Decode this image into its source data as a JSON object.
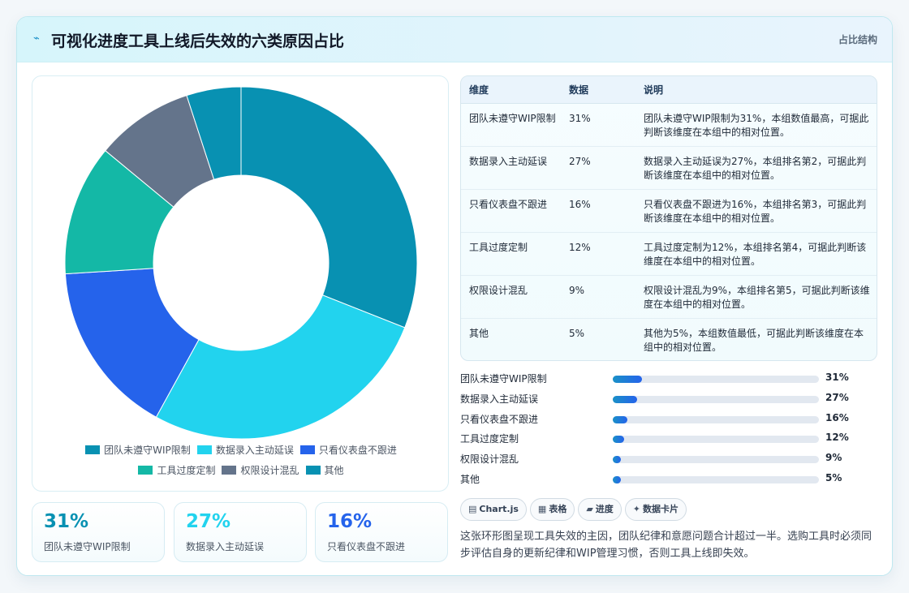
{
  "header": {
    "title": "可视化进度工具上线后失效的六类原因占比",
    "tag": "占比结构"
  },
  "colors": {
    "accent": "#0891b2",
    "slices": [
      "#0891b2",
      "#22d3ee",
      "#2563eb",
      "#14b8a6",
      "#64748b",
      "#0891b2"
    ],
    "kpi": [
      "#0891b2",
      "#22d3ee",
      "#2563eb"
    ]
  },
  "chart_data": {
    "type": "pie",
    "variant": "doughnut",
    "categories": [
      "团队未遵守WIP限制",
      "数据录入主动延误",
      "只看仪表盘不跟进",
      "工具过度定制",
      "权限设计混乱",
      "其他"
    ],
    "values": [
      31,
      27,
      16,
      12,
      9,
      5
    ],
    "legend_position": "bottom"
  },
  "table": {
    "headers": [
      "维度",
      "数据",
      "说明"
    ],
    "rows": [
      {
        "dim": "团队未遵守WIP限制",
        "val": "31%",
        "note": "团队未遵守WIP限制为31%，本组数值最高，可据此判断该维度在本组中的相对位置。"
      },
      {
        "dim": "数据录入主动延误",
        "val": "27%",
        "note": "数据录入主动延误为27%，本组排名第2，可据此判断该维度在本组中的相对位置。"
      },
      {
        "dim": "只看仪表盘不跟进",
        "val": "16%",
        "note": "只看仪表盘不跟进为16%，本组排名第3，可据此判断该维度在本组中的相对位置。"
      },
      {
        "dim": "工具过度定制",
        "val": "12%",
        "note": "工具过度定制为12%，本组排名第4，可据此判断该维度在本组中的相对位置。"
      },
      {
        "dim": "权限设计混乱",
        "val": "9%",
        "note": "权限设计混乱为9%，本组排名第5，可据此判断该维度在本组中的相对位置。"
      },
      {
        "dim": "其他",
        "val": "5%",
        "note": "其他为5%，本组数值最低，可据此判断该维度在本组中的相对位置。"
      }
    ]
  },
  "progress": [
    {
      "label": "团队未遵守WIP限制",
      "value_text": "31%",
      "fill": 0.14
    },
    {
      "label": "数据录入主动延误",
      "value_text": "27%",
      "fill": 0.12
    },
    {
      "label": "只看仪表盘不跟进",
      "value_text": "16%",
      "fill": 0.07
    },
    {
      "label": "工具过度定制",
      "value_text": "12%",
      "fill": 0.055
    },
    {
      "label": "权限设计混乱",
      "value_text": "9%",
      "fill": 0.04
    },
    {
      "label": "其他",
      "value_text": "5%",
      "fill": 0.04
    }
  ],
  "kpis": [
    {
      "value": "31%",
      "label": "团队未遵守WIP限制"
    },
    {
      "value": "27%",
      "label": "数据录入主动延误"
    },
    {
      "value": "16%",
      "label": "只看仪表盘不跟进"
    }
  ],
  "chips": [
    {
      "icon": "chart-icon",
      "glyph": "▤",
      "label": "Chart.js"
    },
    {
      "icon": "table-icon",
      "glyph": "▦",
      "label": "表格"
    },
    {
      "icon": "progress-icon",
      "glyph": "▰",
      "label": "进度"
    },
    {
      "icon": "card-icon",
      "glyph": "✦",
      "label": "数据卡片"
    }
  ],
  "summary": "这张环形图呈现工具失效的主因，团队纪律和意愿问题合计超过一半。选购工具时必须同步评估自身的更新纪律和WIP管理习惯，否则工具上线即失效。"
}
